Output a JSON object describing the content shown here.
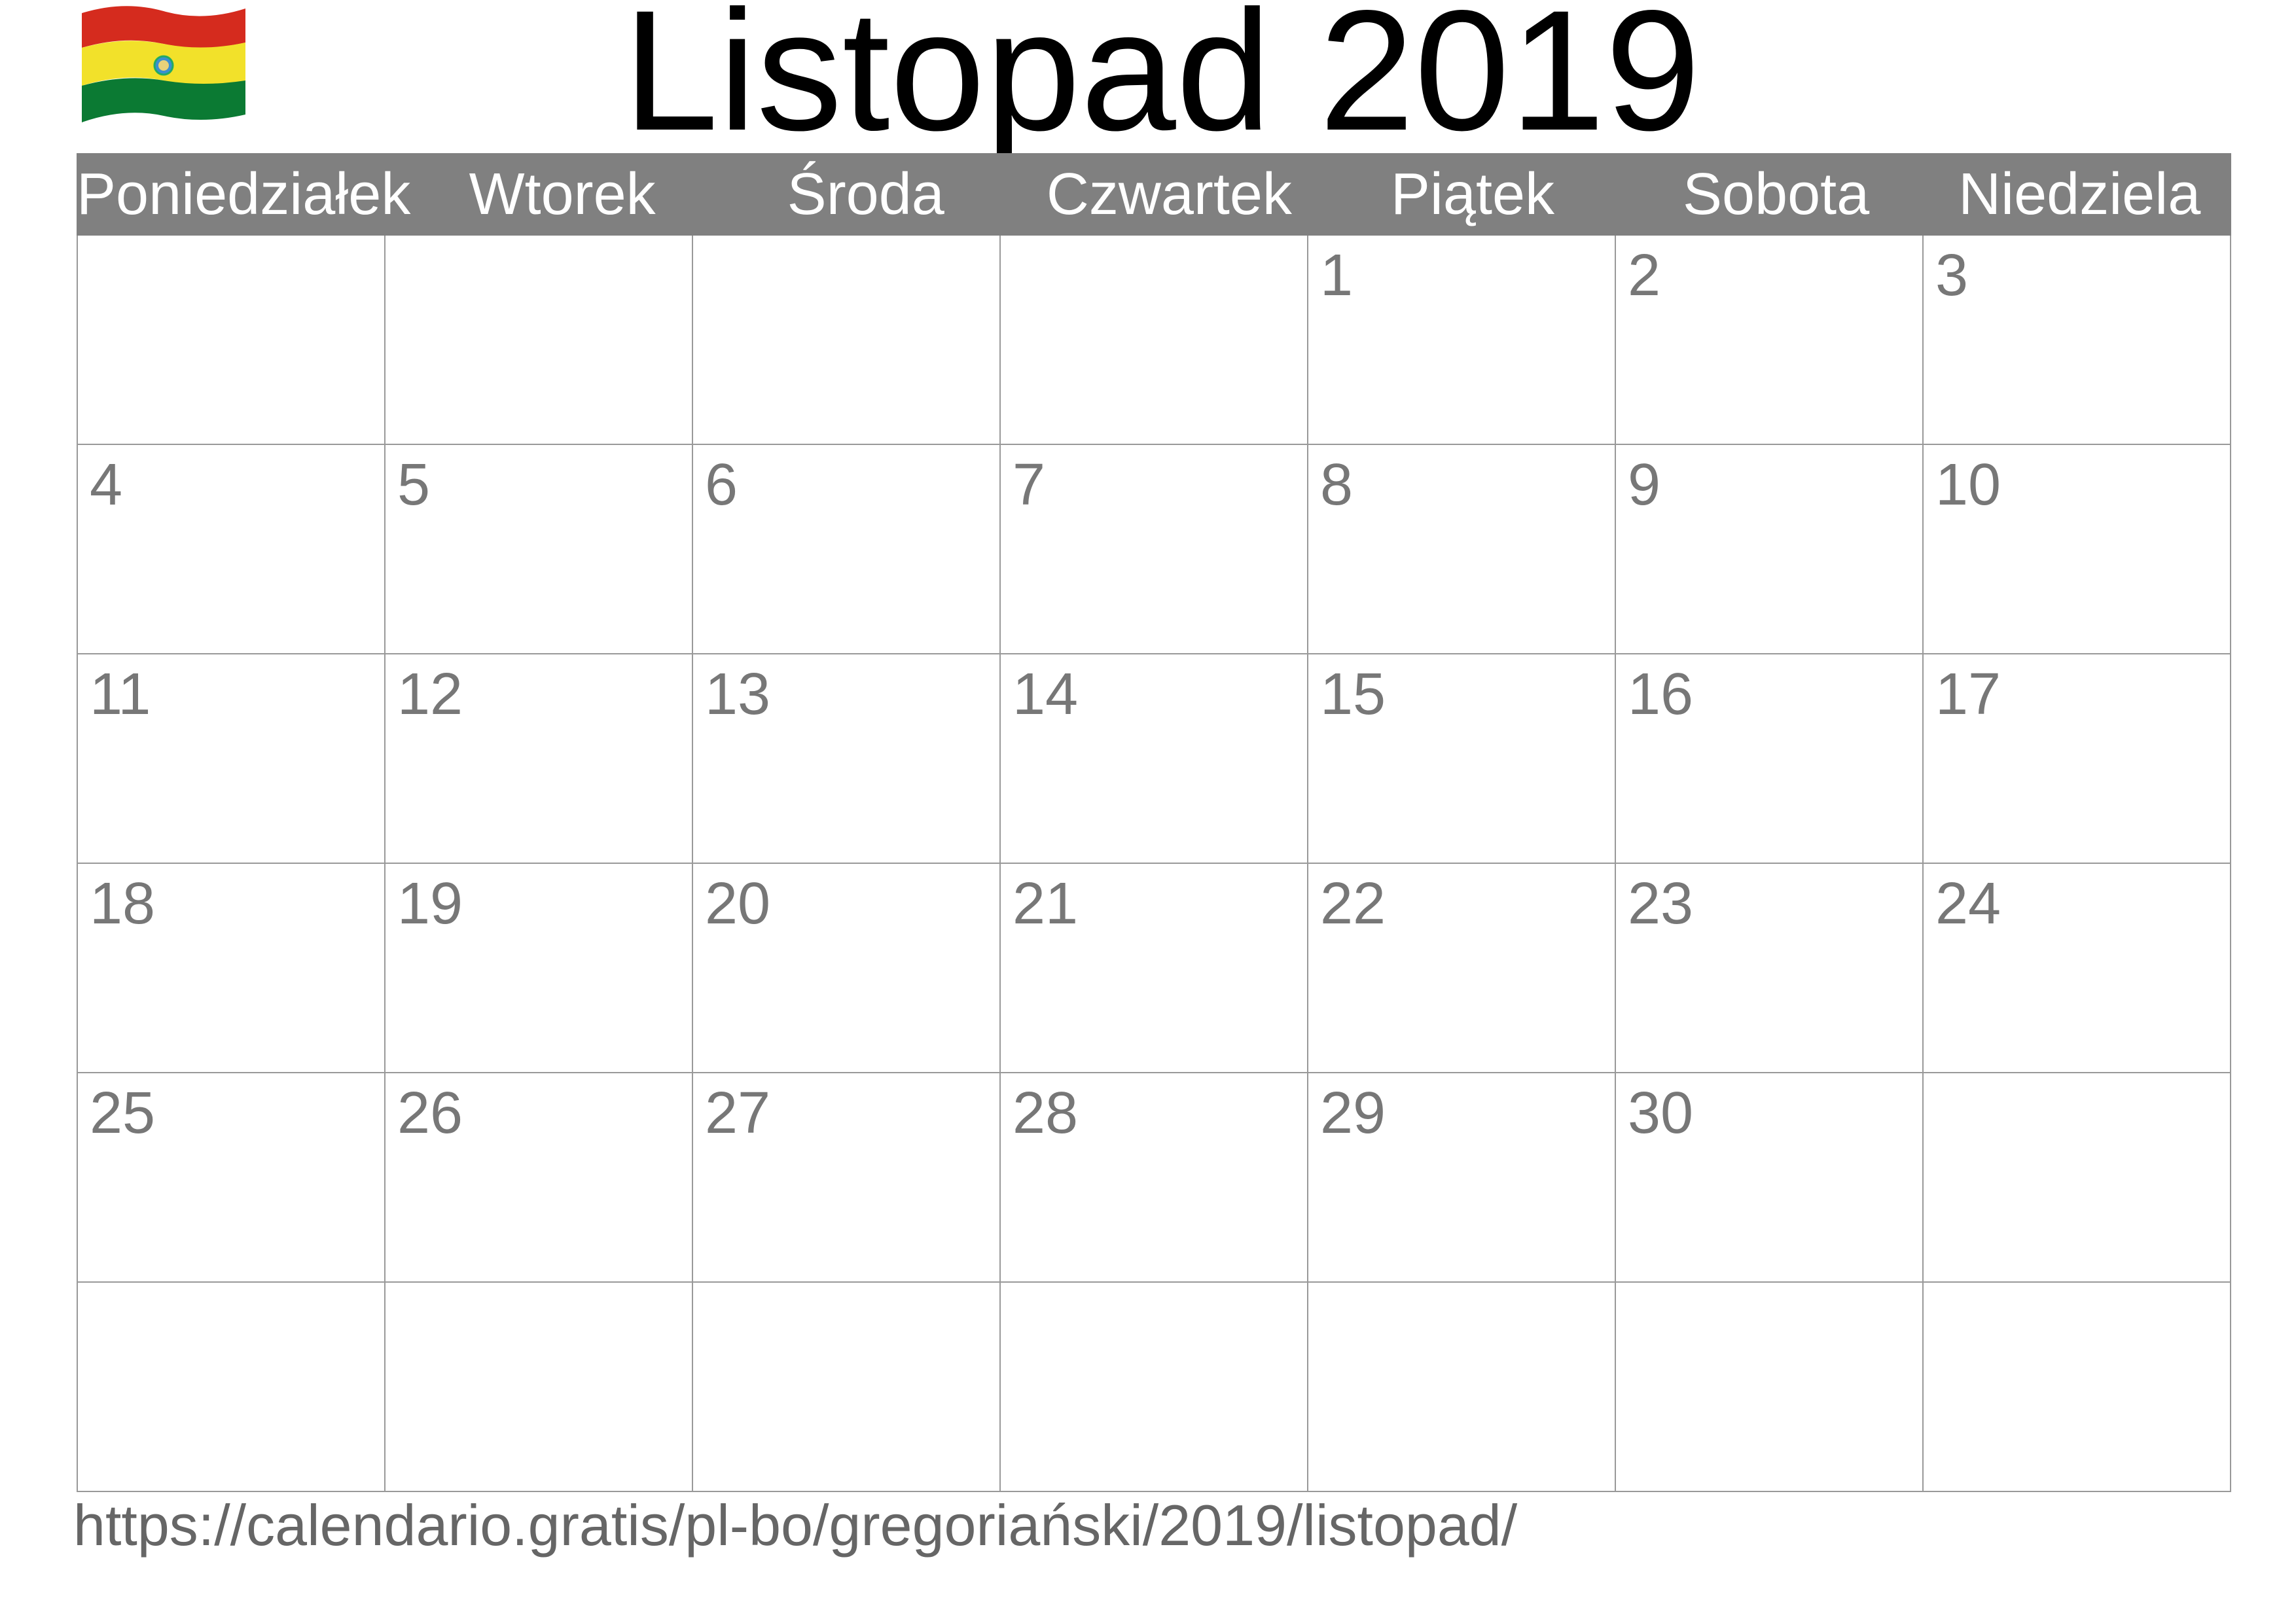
{
  "title": "Listopad 2019",
  "flag": {
    "icon": "bolivia-flag-icon",
    "colors": [
      "#d52b1e",
      "#f9e300",
      "#007934"
    ]
  },
  "weekdays": [
    "Poniedziałek",
    "Wtorek",
    "Środa",
    "Czwartek",
    "Piątek",
    "Sobota",
    "Niedziela"
  ],
  "weeks": [
    [
      "",
      "",
      "",
      "",
      "1",
      "2",
      "3"
    ],
    [
      "4",
      "5",
      "6",
      "7",
      "8",
      "9",
      "10"
    ],
    [
      "11",
      "12",
      "13",
      "14",
      "15",
      "16",
      "17"
    ],
    [
      "18",
      "19",
      "20",
      "21",
      "22",
      "23",
      "24"
    ],
    [
      "25",
      "26",
      "27",
      "28",
      "29",
      "30",
      ""
    ],
    [
      "",
      "",
      "",
      "",
      "",
      "",
      ""
    ]
  ],
  "url": "https://calendario.gratis/pl-bo/gregoriański/2019/listopad/"
}
